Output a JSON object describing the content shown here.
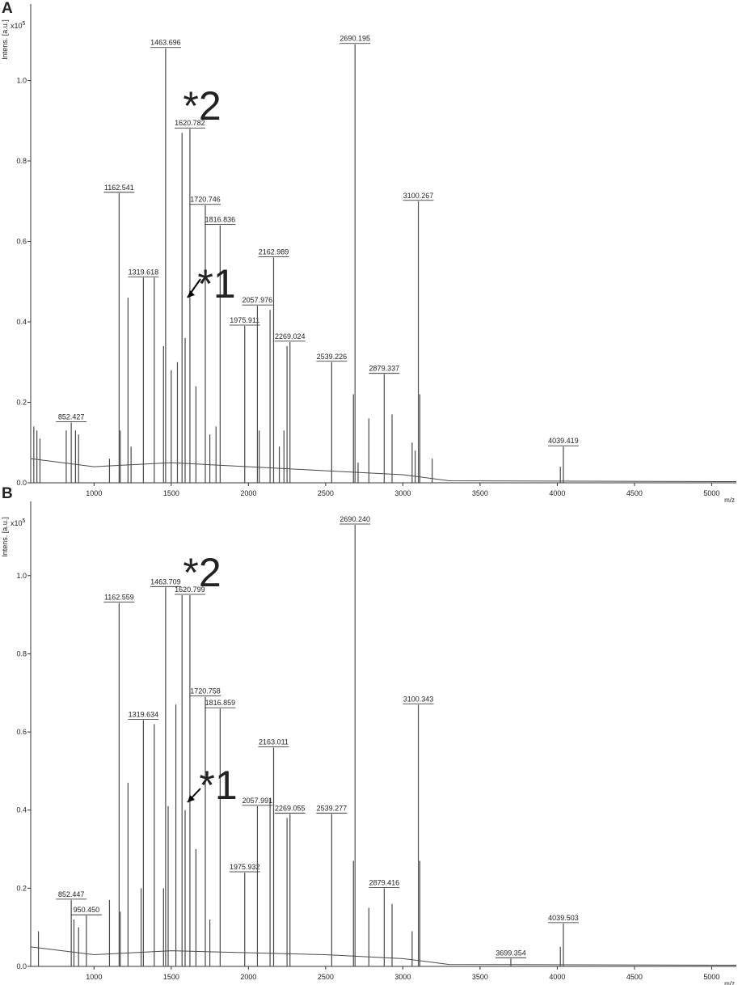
{
  "chart_data": [
    {
      "type": "spectrum",
      "panel": "A",
      "ylabel": "Intens. [a.u.]",
      "yscale_base": "x10",
      "yscale_exp": "5",
      "xlabel": "m/z",
      "color": "#4a4a4a",
      "label_color": "#222222",
      "xlim": [
        590,
        5160
      ],
      "ylim": [
        0,
        1.19
      ],
      "xticks": [
        1000,
        1500,
        2000,
        2500,
        3000,
        3500,
        4000,
        4500,
        5000
      ],
      "yticks": [
        {
          "value": 0,
          "label": "0.0"
        },
        0.2,
        0.4,
        0.6,
        0.8,
        {
          "value": 1,
          "label": "1.0"
        }
      ],
      "labeled_peaks": {
        "x": [
          852.427,
          1162.541,
          1319.618,
          1463.696,
          1620.782,
          1720.746,
          1816.836,
          1975.911,
          2057.976,
          2162.989,
          2269.024,
          2539.226,
          2690.195,
          2879.337,
          3100.267,
          4039.419
        ],
        "labels": [
          "852.427",
          "1162.541",
          "1319.618",
          "1463.696",
          "1620.782",
          "1720.746",
          "1816.836",
          "1975.911",
          "2057.976",
          "2162.989",
          "2269.024",
          "2539.226",
          "2690.195",
          "2879.337",
          "3100.267",
          "4039.419"
        ],
        "values": [
          0.15,
          0.72,
          0.51,
          1.08,
          0.88,
          0.69,
          0.64,
          0.39,
          0.44,
          0.56,
          0.35,
          0.3,
          1.09,
          0.27,
          0.7,
          0.09
        ]
      },
      "peaks": {
        "x": [
          610,
          630,
          650,
          820,
          880,
          900,
          1100,
          1170,
          1220,
          1240,
          1390,
          1450,
          1500,
          1540,
          1570,
          1590,
          1660,
          1750,
          1790,
          2070,
          2140,
          2200,
          2230,
          2250,
          2680,
          2710,
          2780,
          2930,
          3060,
          3080,
          3110,
          3190,
          4020
        ],
        "values": [
          0.14,
          0.13,
          0.11,
          0.13,
          0.13,
          0.12,
          0.06,
          0.13,
          0.46,
          0.09,
          0.51,
          0.34,
          0.28,
          0.3,
          0.87,
          0.36,
          0.24,
          0.12,
          0.14,
          0.13,
          0.43,
          0.09,
          0.13,
          0.34,
          0.22,
          0.05,
          0.16,
          0.17,
          0.1,
          0.08,
          0.22,
          0.06,
          0.04
        ]
      },
      "baseline": {
        "x": [
          590,
          1000,
          1500,
          2000,
          2500,
          3000,
          3300,
          5160
        ],
        "values": [
          0.06,
          0.04,
          0.05,
          0.04,
          0.03,
          0.02,
          0.005,
          0.003
        ]
      },
      "annotations": [
        "*2",
        "*1"
      ]
    },
    {
      "type": "spectrum",
      "panel": "B",
      "ylabel": "Intens. [a.u.]",
      "yscale_base": "x10",
      "yscale_exp": "5",
      "xlabel": "m/z",
      "color": "#4a4a4a",
      "label_color": "#222222",
      "xlim": [
        590,
        5160
      ],
      "ylim": [
        0,
        1.19
      ],
      "xticks": [
        1000,
        1500,
        2000,
        2500,
        3000,
        3500,
        4000,
        4500,
        5000
      ],
      "yticks": [
        {
          "value": 0,
          "label": "0.0"
        },
        0.2,
        0.4,
        0.6,
        0.8,
        {
          "value": 1,
          "label": "1.0"
        }
      ],
      "labeled_peaks": {
        "x": [
          852.447,
          950.45,
          1162.559,
          1319.634,
          1463.709,
          1620.799,
          1720.758,
          1816.859,
          1975.932,
          2057.991,
          2163.011,
          2269.055,
          2539.277,
          2690.24,
          2879.416,
          3100.343,
          3699.354,
          4039.503
        ],
        "labels": [
          "852.447",
          "950.450",
          "1162.559",
          "1319.634",
          "1463.709",
          "1620.799",
          "1720.758",
          "1816.859",
          "1975.932",
          "2057.991",
          "2163.011",
          "2269.055",
          "2539.277",
          "2690.240",
          "2879.416",
          "3100.343",
          "3699.354",
          "4039.503"
        ],
        "values": [
          0.17,
          0.13,
          0.93,
          0.63,
          0.97,
          0.95,
          0.69,
          0.66,
          0.24,
          0.41,
          0.56,
          0.39,
          0.39,
          1.13,
          0.2,
          0.67,
          0.02,
          0.11
        ]
      },
      "peaks": {
        "x": [
          640,
          870,
          900,
          1100,
          1170,
          1220,
          1305,
          1390,
          1450,
          1480,
          1530,
          1570,
          1590,
          1660,
          1750,
          2140,
          2250,
          2680,
          2780,
          2930,
          3060,
          3110,
          4020
        ],
        "values": [
          0.09,
          0.12,
          0.1,
          0.17,
          0.14,
          0.47,
          0.2,
          0.62,
          0.2,
          0.41,
          0.67,
          0.95,
          0.4,
          0.3,
          0.12,
          0.43,
          0.38,
          0.27,
          0.15,
          0.16,
          0.09,
          0.27,
          0.05
        ]
      },
      "baseline": {
        "x": [
          590,
          1000,
          1500,
          2000,
          2500,
          3000,
          3300,
          5160
        ],
        "values": [
          0.05,
          0.03,
          0.04,
          0.035,
          0.03,
          0.02,
          0.005,
          0.003
        ]
      },
      "annotations": [
        "*2",
        "*1"
      ]
    }
  ]
}
